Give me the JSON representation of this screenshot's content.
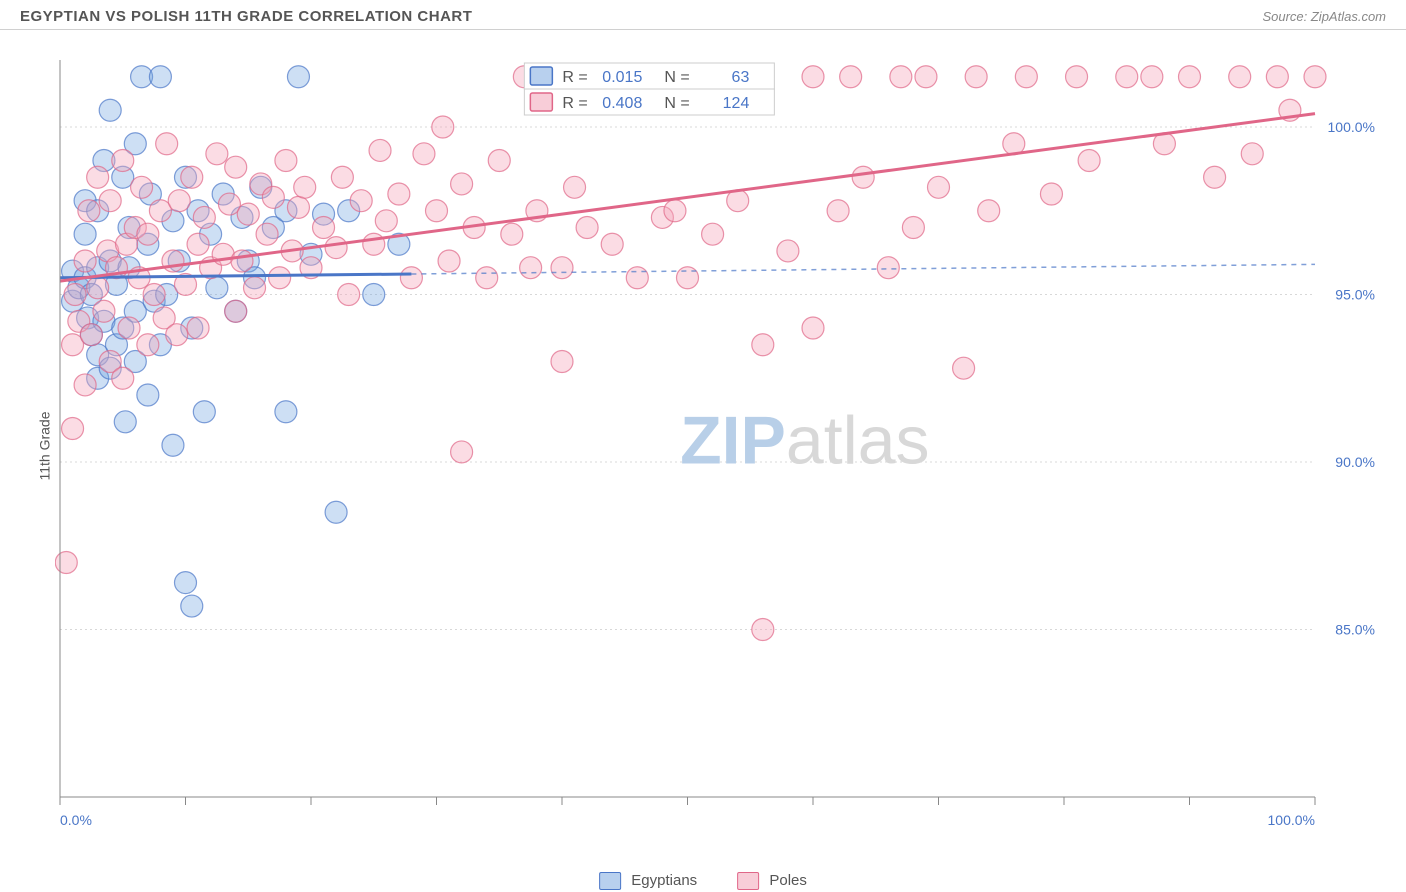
{
  "title": "EGYPTIAN VS POLISH 11TH GRADE CORRELATION CHART",
  "source": "Source: ZipAtlas.com",
  "watermark_zip": "ZIP",
  "watermark_atlas": "atlas",
  "yaxis_label": "11th Grade",
  "chart": {
    "type": "scatter",
    "xlim": [
      0,
      100
    ],
    "ylim": [
      80,
      102
    ],
    "grid_color": "#d8d8d8",
    "axis_color": "#888888",
    "background_color": "#ffffff",
    "yticks": [
      {
        "v": 85.0,
        "label": "85.0%"
      },
      {
        "v": 90.0,
        "label": "90.0%"
      },
      {
        "v": 95.0,
        "label": "95.0%"
      },
      {
        "v": 100.0,
        "label": "100.0%"
      }
    ],
    "xticks_minor": [
      0,
      10,
      20,
      30,
      40,
      50,
      60,
      70,
      80,
      90,
      100
    ],
    "xtick_labels": [
      {
        "v": 0,
        "label": "0.0%"
      },
      {
        "v": 100,
        "label": "100.0%"
      }
    ],
    "marker_radius": 11,
    "marker_stroke_width": 1.2,
    "series": [
      {
        "name": "Egyptians",
        "fill": "#6fa3e0",
        "fill_opacity": 0.35,
        "stroke": "#4a76c7",
        "regression": {
          "y1": 95.5,
          "y2": 95.9,
          "x_data_max": 28,
          "dash": "5,5"
        },
        "R": 0.015,
        "N": 63,
        "points": [
          [
            1,
            95.7
          ],
          [
            1,
            94.8
          ],
          [
            1.5,
            95.2
          ],
          [
            2,
            95.5
          ],
          [
            2,
            96.8
          ],
          [
            2,
            97.8
          ],
          [
            2.2,
            94.3
          ],
          [
            2.5,
            93.8
          ],
          [
            2.5,
            95.0
          ],
          [
            3,
            92.5
          ],
          [
            3,
            93.2
          ],
          [
            3,
            95.8
          ],
          [
            3,
            97.5
          ],
          [
            3.5,
            94.2
          ],
          [
            3.5,
            99.0
          ],
          [
            4,
            92.8
          ],
          [
            4,
            96.0
          ],
          [
            4,
            100.5
          ],
          [
            4.5,
            93.5
          ],
          [
            4.5,
            95.3
          ],
          [
            5,
            94.0
          ],
          [
            5,
            98.5
          ],
          [
            5.2,
            91.2
          ],
          [
            5.5,
            95.8
          ],
          [
            5.5,
            97.0
          ],
          [
            6,
            93.0
          ],
          [
            6,
            94.5
          ],
          [
            6,
            99.5
          ],
          [
            6.5,
            101.5
          ],
          [
            7,
            92.0
          ],
          [
            7,
            96.5
          ],
          [
            7.2,
            98.0
          ],
          [
            7.5,
            94.8
          ],
          [
            8,
            101.5
          ],
          [
            8,
            93.5
          ],
          [
            8.5,
            95.0
          ],
          [
            9,
            90.5
          ],
          [
            9,
            97.2
          ],
          [
            9.5,
            96.0
          ],
          [
            10,
            86.4
          ],
          [
            10,
            98.5
          ],
          [
            10.5,
            94.0
          ],
          [
            10.5,
            85.7
          ],
          [
            11,
            97.5
          ],
          [
            11.5,
            91.5
          ],
          [
            12,
            96.8
          ],
          [
            12.5,
            95.2
          ],
          [
            13,
            98.0
          ],
          [
            14,
            94.5
          ],
          [
            14.5,
            97.3
          ],
          [
            15,
            96.0
          ],
          [
            15.5,
            95.5
          ],
          [
            16,
            98.2
          ],
          [
            17,
            97.0
          ],
          [
            18,
            91.5
          ],
          [
            18,
            97.5
          ],
          [
            19,
            101.5
          ],
          [
            20,
            96.2
          ],
          [
            21,
            97.4
          ],
          [
            22,
            88.5
          ],
          [
            23,
            97.5
          ],
          [
            25,
            95.0
          ],
          [
            27,
            96.5
          ]
        ]
      },
      {
        "name": "Poles",
        "fill": "#f4a8bc",
        "fill_opacity": 0.4,
        "stroke": "#e06688",
        "regression": {
          "y1": 95.4,
          "y2": 100.4,
          "x_data_max": 100,
          "dash": null
        },
        "R": 0.408,
        "N": 124,
        "points": [
          [
            0.5,
            87.0
          ],
          [
            1,
            91.0
          ],
          [
            1,
            93.5
          ],
          [
            1.2,
            95.0
          ],
          [
            1.5,
            94.2
          ],
          [
            2,
            92.3
          ],
          [
            2,
            96.0
          ],
          [
            2.3,
            97.5
          ],
          [
            2.5,
            93.8
          ],
          [
            3,
            95.2
          ],
          [
            3,
            98.5
          ],
          [
            3.5,
            94.5
          ],
          [
            3.8,
            96.3
          ],
          [
            4,
            93.0
          ],
          [
            4,
            97.8
          ],
          [
            4.5,
            95.8
          ],
          [
            5,
            92.5
          ],
          [
            5,
            99.0
          ],
          [
            5.3,
            96.5
          ],
          [
            5.5,
            94.0
          ],
          [
            6,
            97.0
          ],
          [
            6.3,
            95.5
          ],
          [
            6.5,
            98.2
          ],
          [
            7,
            93.5
          ],
          [
            7,
            96.8
          ],
          [
            7.5,
            95.0
          ],
          [
            8,
            97.5
          ],
          [
            8.3,
            94.3
          ],
          [
            8.5,
            99.5
          ],
          [
            9,
            96.0
          ],
          [
            9.3,
            93.8
          ],
          [
            9.5,
            97.8
          ],
          [
            10,
            95.3
          ],
          [
            10.5,
            98.5
          ],
          [
            11,
            94.0
          ],
          [
            11,
            96.5
          ],
          [
            11.5,
            97.3
          ],
          [
            12,
            95.8
          ],
          [
            12.5,
            99.2
          ],
          [
            13,
            96.2
          ],
          [
            13.5,
            97.7
          ],
          [
            14,
            94.5
          ],
          [
            14,
            98.8
          ],
          [
            14.5,
            96.0
          ],
          [
            15,
            97.4
          ],
          [
            15.5,
            95.2
          ],
          [
            16,
            98.3
          ],
          [
            16.5,
            96.8
          ],
          [
            17,
            97.9
          ],
          [
            17.5,
            95.5
          ],
          [
            18,
            99.0
          ],
          [
            18.5,
            96.3
          ],
          [
            19,
            97.6
          ],
          [
            19.5,
            98.2
          ],
          [
            20,
            95.8
          ],
          [
            21,
            97.0
          ],
          [
            22,
            96.4
          ],
          [
            22.5,
            98.5
          ],
          [
            23,
            95.0
          ],
          [
            24,
            97.8
          ],
          [
            25,
            96.5
          ],
          [
            25.5,
            99.3
          ],
          [
            26,
            97.2
          ],
          [
            27,
            98.0
          ],
          [
            28,
            95.5
          ],
          [
            29,
            99.2
          ],
          [
            30,
            97.5
          ],
          [
            30.5,
            100.0
          ],
          [
            31,
            96.0
          ],
          [
            32,
            98.3
          ],
          [
            32,
            90.3
          ],
          [
            33,
            97.0
          ],
          [
            34,
            95.5
          ],
          [
            35,
            99.0
          ],
          [
            36,
            96.8
          ],
          [
            37,
            101.5
          ],
          [
            37.5,
            95.8
          ],
          [
            38,
            97.5
          ],
          [
            39,
            101.5
          ],
          [
            40,
            93.0
          ],
          [
            40,
            95.8
          ],
          [
            41,
            98.2
          ],
          [
            42,
            97.0
          ],
          [
            43,
            101.5
          ],
          [
            44,
            96.5
          ],
          [
            46,
            95.5
          ],
          [
            47,
            101.5
          ],
          [
            48,
            97.3
          ],
          [
            49,
            97.5
          ],
          [
            50,
            95.5
          ],
          [
            52,
            96.8
          ],
          [
            53,
            101.5
          ],
          [
            54,
            97.8
          ],
          [
            56,
            93.5
          ],
          [
            56,
            85.0
          ],
          [
            58,
            96.3
          ],
          [
            60,
            101.5
          ],
          [
            60,
            94.0
          ],
          [
            62,
            97.5
          ],
          [
            63,
            101.5
          ],
          [
            64,
            98.5
          ],
          [
            66,
            95.8
          ],
          [
            67,
            101.5
          ],
          [
            68,
            97.0
          ],
          [
            69,
            101.5
          ],
          [
            70,
            98.2
          ],
          [
            72,
            92.8
          ],
          [
            73,
            101.5
          ],
          [
            74,
            97.5
          ],
          [
            76,
            99.5
          ],
          [
            77,
            101.5
          ],
          [
            79,
            98.0
          ],
          [
            81,
            101.5
          ],
          [
            82,
            99.0
          ],
          [
            85,
            101.5
          ],
          [
            87,
            101.5
          ],
          [
            88,
            99.5
          ],
          [
            90,
            101.5
          ],
          [
            92,
            98.5
          ],
          [
            94,
            101.5
          ],
          [
            95,
            99.2
          ],
          [
            97,
            101.5
          ],
          [
            98,
            100.5
          ],
          [
            100,
            101.5
          ]
        ]
      }
    ]
  },
  "stats_legend": {
    "r_label": "R =",
    "n_label": "N =",
    "text_color": "#4a76c7",
    "rows": [
      {
        "swatch_fill": "#b8d0ee",
        "swatch_stroke": "#4a76c7",
        "R": "0.015",
        "N": "63"
      },
      {
        "swatch_fill": "#f8cdd8",
        "swatch_stroke": "#e06688",
        "R": "0.408",
        "N": "124"
      }
    ]
  },
  "bottom_legend": [
    {
      "swatch_fill": "#b8d0ee",
      "swatch_stroke": "#4a76c7",
      "label": "Egyptians"
    },
    {
      "swatch_fill": "#f8cdd8",
      "swatch_stroke": "#e06688",
      "label": "Poles"
    }
  ],
  "colors": {
    "title_text": "#555555",
    "source_text": "#888888",
    "axis_text": "#4a76c7",
    "watermark_zip": "#b8cfe8",
    "watermark_atlas": "#d8d8d8"
  }
}
